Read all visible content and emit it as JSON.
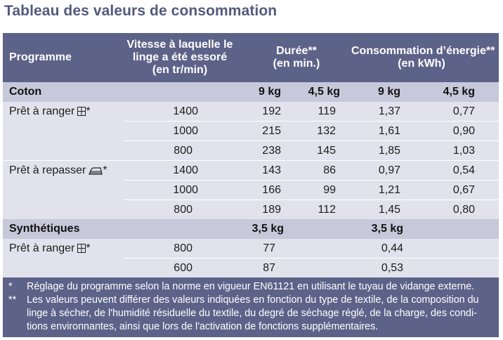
{
  "title": "Tableau des valeurs de consommation",
  "header": {
    "programme": "Programme",
    "speed": [
      "Vitesse à laquelle le",
      "linge a été essoré",
      "(en tr/min)"
    ],
    "duration": [
      "Durée**",
      "(en min.)"
    ],
    "energy": [
      "Consommation d’énergie**",
      "(en kWh)"
    ]
  },
  "sections": [
    {
      "label": "Coton",
      "loads": [
        "9 kg",
        "4,5 kg",
        "9 kg",
        "4,5 kg"
      ],
      "programs": [
        {
          "label": "Prêt à ranger",
          "icon": "cupboard-dry-icon",
          "suffix": "*",
          "rows": [
            {
              "speed": "1400",
              "d1": "192",
              "d2": "119",
              "e1": "1,37",
              "e2": "0,77"
            },
            {
              "speed": "1000",
              "d1": "215",
              "d2": "132",
              "e1": "1,61",
              "e2": "0,90"
            },
            {
              "speed": "800",
              "d1": "238",
              "d2": "145",
              "e1": "1,85",
              "e2": "1,03"
            }
          ]
        },
        {
          "label": "Prêt à repasser",
          "icon": "iron-icon",
          "suffix": "*",
          "rows": [
            {
              "speed": "1400",
              "d1": "143",
              "d2": "86",
              "e1": "0,97",
              "e2": "0,54"
            },
            {
              "speed": "1000",
              "d1": "166",
              "d2": "99",
              "e1": "1,21",
              "e2": "0,67"
            },
            {
              "speed": "800",
              "d1": "189",
              "d2": "112",
              "e1": "1,45",
              "e2": "0,80"
            }
          ]
        }
      ]
    },
    {
      "label": "Synthétiques",
      "loads": [
        "3,5 kg",
        "3,5 kg"
      ],
      "programs": [
        {
          "label": "Prêt à ranger",
          "icon": "cupboard-dry-icon",
          "suffix": "*",
          "rows": [
            {
              "speed": "800",
              "d1": "77",
              "e1": "0,44"
            },
            {
              "speed": "600",
              "d1": "87",
              "e1": "0,53"
            }
          ]
        }
      ]
    }
  ],
  "notes": [
    {
      "mark": "*",
      "lines": [
        "Réglage du programme selon la norme en vigueur EN61121 en utilisant le tuyau de vidange externe."
      ]
    },
    {
      "mark": "**",
      "lines": [
        "Les valeurs peuvent différer des valeurs indiquées en fonction du type de textile, de la composition du",
        "linge à sécher, de l'humidité résiduelle du textile, du degré de séchage réglé, de la charge, des condi-",
        "tions environnantes, ainsi que lors de l'activation de fonctions supplémentaires."
      ]
    }
  ],
  "colors": {
    "header_bg": "#5d6289",
    "row_bg": "#e2e2ec",
    "section_bg": "#c7c8da",
    "title": "#515a7d"
  }
}
